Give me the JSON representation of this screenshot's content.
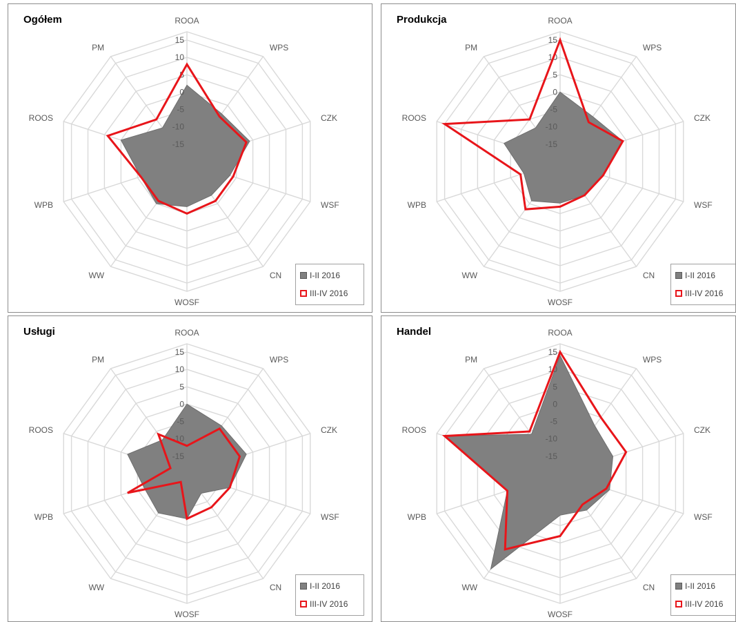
{
  "legend": {
    "series1": "I-II 2016",
    "series2": "III-IV 2016"
  },
  "colors": {
    "series1_fill": "#808080",
    "series1_stroke": "#6e6e6e",
    "series2_stroke": "#e8151a",
    "grid": "#d9d9d9"
  },
  "axes": [
    "ROOA",
    "WPS",
    "CZK",
    "WSF",
    "CN",
    "WOSF",
    "WW",
    "WPB",
    "ROOS",
    "PM"
  ],
  "radial_ticks": [
    "15",
    "10",
    "5",
    "0",
    "-5",
    "-10",
    "-15"
  ],
  "chart_data": [
    {
      "type": "radar",
      "title": "Ogółem",
      "categories": [
        "ROOA",
        "WPS",
        "CZK",
        "WSF",
        "CN",
        "WOSF",
        "WW",
        "WPB",
        "ROOS",
        "PM"
      ],
      "range": [
        -20,
        15
      ],
      "series": [
        {
          "name": "I-II 2016",
          "values": [
            2,
            -3,
            -1,
            -7,
            -8,
            -7,
            -5,
            -6,
            0,
            -8
          ]
        },
        {
          "name": "III-IV 2016",
          "values": [
            8,
            -4,
            -2,
            -6,
            -6,
            -5,
            -6,
            -6,
            4,
            -5
          ]
        }
      ]
    },
    {
      "type": "radar",
      "title": "Produkcja",
      "categories": [
        "ROOA",
        "WPS",
        "CZK",
        "WSF",
        "CN",
        "WOSF",
        "WW",
        "WPB",
        "ROOS",
        "PM"
      ],
      "range": [
        -20,
        15
      ],
      "series": [
        {
          "name": "I-II 2016",
          "values": [
            0,
            -4,
            -1,
            -7,
            -8,
            -8,
            -6,
            -9,
            -3,
            -8
          ]
        },
        {
          "name": "III-IV 2016",
          "values": [
            15,
            -6,
            -1,
            -7,
            -8,
            -7,
            -3,
            -8,
            15,
            -5
          ]
        }
      ]
    },
    {
      "type": "radar",
      "title": "Usługi",
      "categories": [
        "ROOA",
        "WPS",
        "CZK",
        "WSF",
        "CN",
        "WOSF",
        "WW",
        "WPB",
        "ROOS",
        "PM"
      ],
      "range": [
        -20,
        15
      ],
      "series": [
        {
          "name": "I-II 2016",
          "values": [
            0,
            -3,
            -2,
            -7,
            -13,
            -7,
            -6,
            -7,
            -2,
            -8
          ]
        },
        {
          "name": "III-IV 2016",
          "values": [
            -12,
            -4,
            -4,
            -7,
            -8,
            -7,
            -17,
            -2,
            -15,
            -6
          ]
        }
      ]
    },
    {
      "type": "radar",
      "title": "Handel",
      "categories": [
        "ROOA",
        "WPS",
        "CZK",
        "WSF",
        "CN",
        "WOSF",
        "WW",
        "WPB",
        "ROOS",
        "PM"
      ],
      "range": [
        -20,
        15
      ],
      "series": [
        {
          "name": "I-II 2016",
          "values": [
            14,
            -3,
            -4,
            -5,
            -7,
            -8,
            14,
            -4,
            15,
            -6
          ]
        },
        {
          "name": "III-IV 2016",
          "values": [
            15,
            0,
            0,
            -6,
            -9,
            -2,
            7,
            -4,
            15,
            -5
          ]
        }
      ]
    }
  ]
}
